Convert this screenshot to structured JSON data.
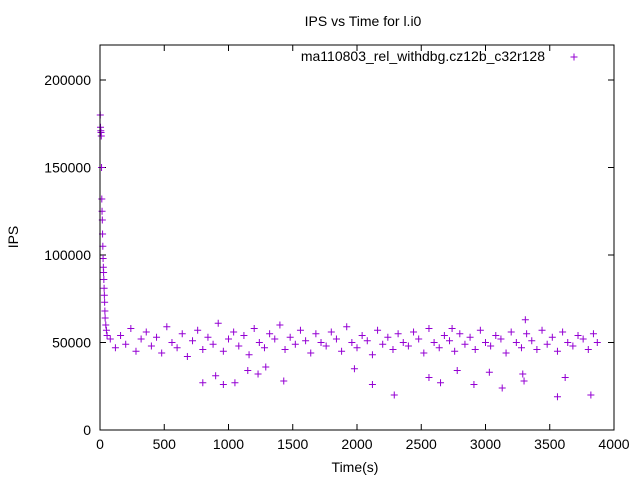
{
  "chart_data": {
    "type": "scatter",
    "title": "IPS vs Time for l.i0",
    "xlabel": "Time(s)",
    "ylabel": "IPS",
    "xlim": [
      0,
      4000
    ],
    "ylim": [
      0,
      220000
    ],
    "xticks": [
      0,
      500,
      1000,
      1500,
      2000,
      2500,
      3000,
      3500,
      4000
    ],
    "yticks": [
      0,
      50000,
      100000,
      150000,
      200000
    ],
    "grid": false,
    "legend_position": "top-right",
    "marker": "plus",
    "series": [
      {
        "name": "ma110803_rel_withdbg.cz12b_c32r128",
        "color": "#9400d3",
        "points": [
          [
            2,
            180000
          ],
          [
            4,
            173000
          ],
          [
            6,
            171000
          ],
          [
            8,
            170000
          ],
          [
            10,
            168000
          ],
          [
            12,
            150000
          ],
          [
            14,
            132000
          ],
          [
            16,
            125000
          ],
          [
            18,
            120000
          ],
          [
            20,
            112000
          ],
          [
            22,
            105000
          ],
          [
            24,
            98000
          ],
          [
            26,
            93000
          ],
          [
            28,
            90000
          ],
          [
            30,
            86000
          ],
          [
            32,
            81000
          ],
          [
            34,
            77000
          ],
          [
            36,
            73000
          ],
          [
            38,
            68000
          ],
          [
            40,
            64000
          ],
          [
            45,
            60000
          ],
          [
            50,
            57000
          ],
          [
            55,
            54000
          ],
          [
            80,
            52000
          ],
          [
            120,
            47000
          ],
          [
            160,
            54000
          ],
          [
            200,
            49000
          ],
          [
            240,
            58000
          ],
          [
            280,
            45000
          ],
          [
            320,
            52000
          ],
          [
            360,
            56000
          ],
          [
            400,
            48000
          ],
          [
            440,
            53000
          ],
          [
            480,
            44000
          ],
          [
            520,
            59000
          ],
          [
            560,
            50000
          ],
          [
            600,
            47000
          ],
          [
            640,
            55000
          ],
          [
            680,
            42000
          ],
          [
            720,
            51000
          ],
          [
            760,
            57000
          ],
          [
            800,
            46000
          ],
          [
            840,
            53000
          ],
          [
            880,
            49000
          ],
          [
            920,
            61000
          ],
          [
            960,
            45000
          ],
          [
            1000,
            52000
          ],
          [
            1040,
            56000
          ],
          [
            1080,
            48000
          ],
          [
            1120,
            54000
          ],
          [
            1160,
            43000
          ],
          [
            1200,
            58000
          ],
          [
            1240,
            50000
          ],
          [
            1280,
            47000
          ],
          [
            1320,
            55000
          ],
          [
            1360,
            52000
          ],
          [
            1400,
            60000
          ],
          [
            1440,
            46000
          ],
          [
            1480,
            53000
          ],
          [
            1520,
            49000
          ],
          [
            1560,
            57000
          ],
          [
            1600,
            51000
          ],
          [
            1640,
            44000
          ],
          [
            1680,
            55000
          ],
          [
            1720,
            50000
          ],
          [
            1760,
            48000
          ],
          [
            1800,
            56000
          ],
          [
            1840,
            52000
          ],
          [
            1880,
            45000
          ],
          [
            1920,
            59000
          ],
          [
            1960,
            50000
          ],
          [
            2000,
            47000
          ],
          [
            2040,
            54000
          ],
          [
            2080,
            51000
          ],
          [
            2120,
            43000
          ],
          [
            2160,
            57000
          ],
          [
            2200,
            49000
          ],
          [
            2240,
            53000
          ],
          [
            2280,
            46000
          ],
          [
            2320,
            55000
          ],
          [
            2360,
            50000
          ],
          [
            2400,
            48000
          ],
          [
            2440,
            56000
          ],
          [
            2480,
            52000
          ],
          [
            2520,
            44000
          ],
          [
            2560,
            58000
          ],
          [
            2600,
            50000
          ],
          [
            2640,
            47000
          ],
          [
            2680,
            54000
          ],
          [
            2720,
            51000
          ],
          [
            2760,
            45000
          ],
          [
            2800,
            55000
          ],
          [
            2840,
            49000
          ],
          [
            2880,
            53000
          ],
          [
            2920,
            46000
          ],
          [
            2960,
            57000
          ],
          [
            3000,
            50000
          ],
          [
            3040,
            48000
          ],
          [
            3080,
            54000
          ],
          [
            3120,
            52000
          ],
          [
            3160,
            44000
          ],
          [
            3200,
            56000
          ],
          [
            3240,
            50000
          ],
          [
            3280,
            47000
          ],
          [
            3320,
            55000
          ],
          [
            3360,
            51000
          ],
          [
            3400,
            46000
          ],
          [
            3440,
            57000
          ],
          [
            3480,
            49000
          ],
          [
            3520,
            53000
          ],
          [
            3560,
            45000
          ],
          [
            3600,
            56000
          ],
          [
            3640,
            50000
          ],
          [
            3680,
            48000
          ],
          [
            3720,
            54000
          ],
          [
            3760,
            52000
          ],
          [
            3800,
            46000
          ],
          [
            3840,
            55000
          ],
          [
            3870,
            50000
          ],
          [
            800,
            27000
          ],
          [
            900,
            31000
          ],
          [
            960,
            26000
          ],
          [
            1050,
            27000
          ],
          [
            1150,
            34000
          ],
          [
            1230,
            32000
          ],
          [
            1290,
            36000
          ],
          [
            1430,
            28000
          ],
          [
            1980,
            35000
          ],
          [
            2120,
            26000
          ],
          [
            2290,
            20000
          ],
          [
            2560,
            30000
          ],
          [
            2650,
            27000
          ],
          [
            2780,
            34000
          ],
          [
            2910,
            26000
          ],
          [
            3030,
            33000
          ],
          [
            3130,
            24000
          ],
          [
            3290,
            32000
          ],
          [
            3300,
            28000
          ],
          [
            3560,
            19000
          ],
          [
            3620,
            30000
          ],
          [
            3820,
            20000
          ],
          [
            3310,
            63000
          ],
          [
            2740,
            58000
          ]
        ]
      }
    ]
  }
}
